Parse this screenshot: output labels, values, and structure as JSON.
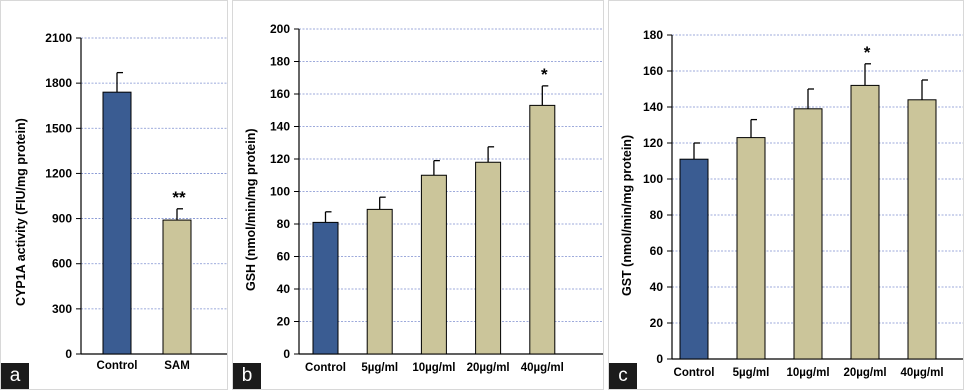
{
  "colors": {
    "control_bar": "#3a5c92",
    "treatment_bar": "#cbc59a",
    "gridline": "#7d8fd0",
    "axis": "#000000"
  },
  "chart_data": [
    {
      "type": "bar",
      "panel_label": "a",
      "title": "",
      "xlabel": "",
      "ylabel": "CYP1A activity (FIU/mg protein)",
      "categories": [
        "Control",
        "SAM"
      ],
      "values": [
        1740,
        890
      ],
      "errors": [
        130,
        75
      ],
      "annotations": [
        "",
        "**"
      ],
      "ylim": [
        0,
        2100
      ],
      "yticks": [
        0,
        300,
        600,
        900,
        1200,
        1500,
        1800,
        2100
      ],
      "grid": true
    },
    {
      "type": "bar",
      "panel_label": "b",
      "title": "",
      "xlabel": "",
      "ylabel": "GSH (nmol/min/mg protein)",
      "categories": [
        "Control",
        "5µg/ml",
        "10µg/ml",
        "20µg/ml",
        "40µg/ml"
      ],
      "values": [
        81,
        89,
        110,
        118,
        153
      ],
      "errors": [
        6.5,
        7.5,
        9,
        9.5,
        12
      ],
      "annotations": [
        "",
        "",
        "",
        "",
        "*"
      ],
      "ylim": [
        0,
        200
      ],
      "yticks": [
        0,
        20,
        40,
        60,
        80,
        100,
        120,
        140,
        160,
        180,
        200
      ],
      "grid": true
    },
    {
      "type": "bar",
      "panel_label": "c",
      "title": "",
      "xlabel": "",
      "ylabel": "GST (nmol/min/mg protein)",
      "categories": [
        "Control",
        "5µg/ml",
        "10µg/ml",
        "20µg/ml",
        "40µg/ml"
      ],
      "values": [
        111,
        123,
        139,
        152,
        144
      ],
      "errors": [
        9,
        10,
        11,
        12,
        11
      ],
      "annotations": [
        "",
        "",
        "",
        "*",
        ""
      ],
      "ylim": [
        0,
        180
      ],
      "yticks": [
        0,
        20,
        40,
        60,
        80,
        100,
        120,
        140,
        160,
        180
      ],
      "grid": true
    }
  ]
}
